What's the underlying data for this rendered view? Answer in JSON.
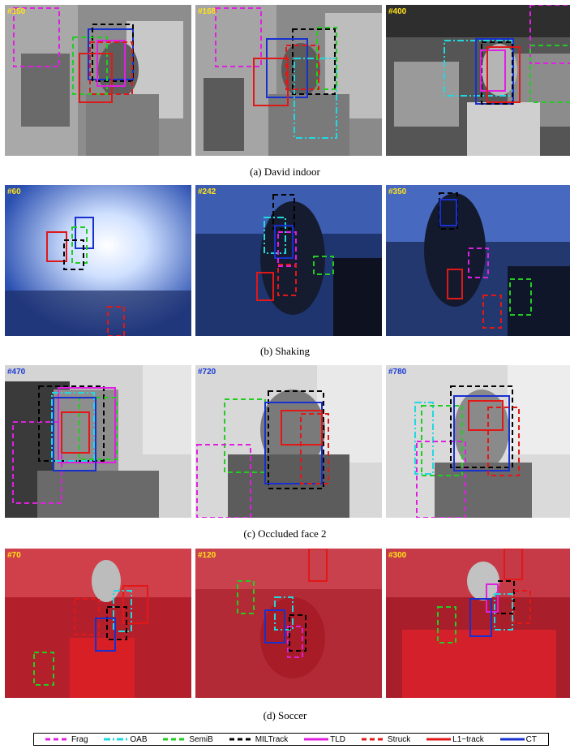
{
  "sections": [
    {
      "caption": "(a) David indoor",
      "frames": [
        "#150",
        "#168",
        "#400"
      ],
      "number_color": "#ffe11a"
    },
    {
      "caption": "(b) Shaking",
      "frames": [
        "#60",
        "#242",
        "#350"
      ],
      "number_color": "#ffe11a"
    },
    {
      "caption": "(c) Occluded face 2",
      "frames": [
        "#470",
        "#720",
        "#780"
      ],
      "number_color": "#1b3bd6"
    },
    {
      "caption": "(d) Soccer",
      "frames": [
        "#70",
        "#120",
        "#300"
      ],
      "number_color": "#ffe11a"
    }
  ],
  "legend": [
    {
      "label": "Frag",
      "color": "#e020e0",
      "style": "dashed"
    },
    {
      "label": "OAB",
      "color": "#22d8e0",
      "style": "dashdot"
    },
    {
      "label": "SemiB",
      "color": "#22cc22",
      "style": "dashed"
    },
    {
      "label": "MILTrack",
      "color": "#000000",
      "style": "dashed"
    },
    {
      "label": "TLD",
      "color": "#e020e0",
      "style": "solid"
    },
    {
      "label": "Struck",
      "color": "#e01818",
      "style": "dashed"
    },
    {
      "label": "L1−track",
      "color": "#e01818",
      "style": "solid"
    },
    {
      "label": "CT",
      "color": "#1830d0",
      "style": "solid"
    }
  ]
}
